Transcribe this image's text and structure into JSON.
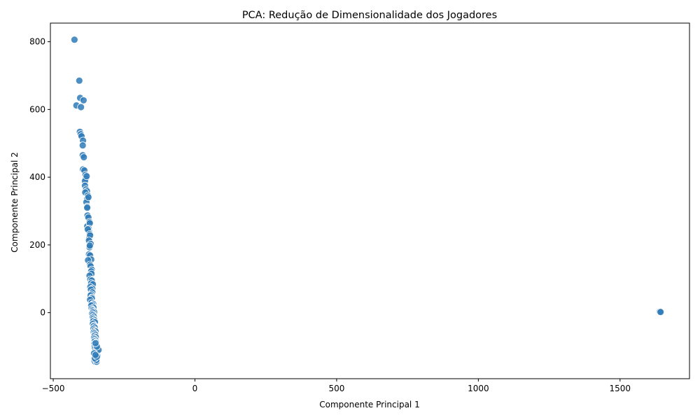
{
  "chart_data": {
    "type": "scatter",
    "title": "PCA: Redução de Dimensionalidade dos Jogadores",
    "xlabel": "Componente Principal 1",
    "ylabel": "Componente Principal 2",
    "xlim": [
      -510,
      1745
    ],
    "ylim": [
      -195,
      855
    ],
    "xticks": [
      -500,
      0,
      500,
      1000,
      1500
    ],
    "yticks": [
      0,
      200,
      400,
      600,
      800
    ],
    "grid": false,
    "legend": "none",
    "marker_color": "#2f7bb8",
    "marker_edge_color": "#ffffff",
    "series": [
      {
        "x": [
          -425,
          -408,
          -418,
          -405,
          -402,
          -393,
          -406,
          -403,
          -400,
          -395,
          -396,
          -396,
          -392,
          -395,
          -390,
          -386,
          -385,
          -388,
          -382,
          -388,
          -384,
          -381,
          -387,
          -378,
          -380,
          -383,
          -380,
          -376,
          -380,
          -379,
          -376,
          -372,
          -380,
          -371,
          -375,
          -374,
          -378,
          -371,
          -373,
          -370,
          -374,
          -368,
          -372,
          -371,
          -374,
          -370,
          -366,
          -377,
          -370,
          -368,
          -364,
          -366,
          -365,
          -372,
          -369,
          -364,
          -366,
          -360,
          -369,
          -362,
          -367,
          -362,
          -365,
          -368,
          -363,
          -364,
          -370,
          -364,
          -359,
          -362,
          -366,
          -358,
          -365,
          -362,
          -360,
          -356,
          -361,
          -363,
          -360,
          -357,
          -361,
          -358,
          -355,
          -359,
          -353,
          -360,
          -356,
          -357,
          -354,
          -358,
          -355,
          -351,
          -357,
          -354,
          -352,
          -355,
          -350,
          -356,
          -353,
          -351,
          -354,
          -349,
          -355,
          -352,
          -350,
          -354,
          -348,
          -353,
          -350,
          -352,
          -349,
          -345,
          -352,
          -348,
          -354,
          -351,
          -344,
          -350,
          -352,
          -347,
          -356,
          -348,
          -354,
          -351,
          -346,
          -353,
          -355,
          -349,
          -352,
          -347,
          -340,
          -356,
          -346,
          -351,
          -348,
          -353,
          -346,
          -351,
          1640,
          1643
        ],
        "y": [
          806,
          685,
          612,
          634,
          607,
          627,
          534,
          527,
          521,
          508,
          494,
          465,
          459,
          423,
          420,
          407,
          396,
          389,
          403,
          375,
          364,
          359,
          355,
          346,
          336,
          326,
          313,
          341,
          310,
          287,
          281,
          268,
          255,
          264,
          248,
          240,
          246,
          232,
          220,
          228,
          213,
          203,
          193,
          198,
          172,
          169,
          157,
          155,
          142,
          137,
          127,
          122,
          115,
          109,
          98,
          95,
          87,
          84,
          76,
          71,
          68,
          60,
          54,
          51,
          45,
          42,
          38,
          30,
          26,
          23,
          21,
          15,
          12,
          9,
          6,
          2,
          1,
          -4,
          -7,
          -11,
          -15,
          -18,
          -22,
          -25,
          -28,
          -33,
          -38,
          -40,
          -44,
          -48,
          -52,
          -55,
          -58,
          -61,
          -65,
          -69,
          -72,
          -75,
          -78,
          -82,
          -85,
          -88,
          -92,
          -95,
          -98,
          -101,
          -104,
          -107,
          -111,
          -113,
          -115,
          -118,
          -121,
          -123,
          -125,
          -127,
          -128,
          -130,
          -133,
          -135,
          -136,
          -138,
          -140,
          -141,
          -142,
          -143,
          -144,
          -144,
          -145,
          -145,
          -110,
          -120,
          -100,
          -90,
          -140,
          -135,
          -130,
          -125,
          3,
          2
        ]
      }
    ]
  }
}
